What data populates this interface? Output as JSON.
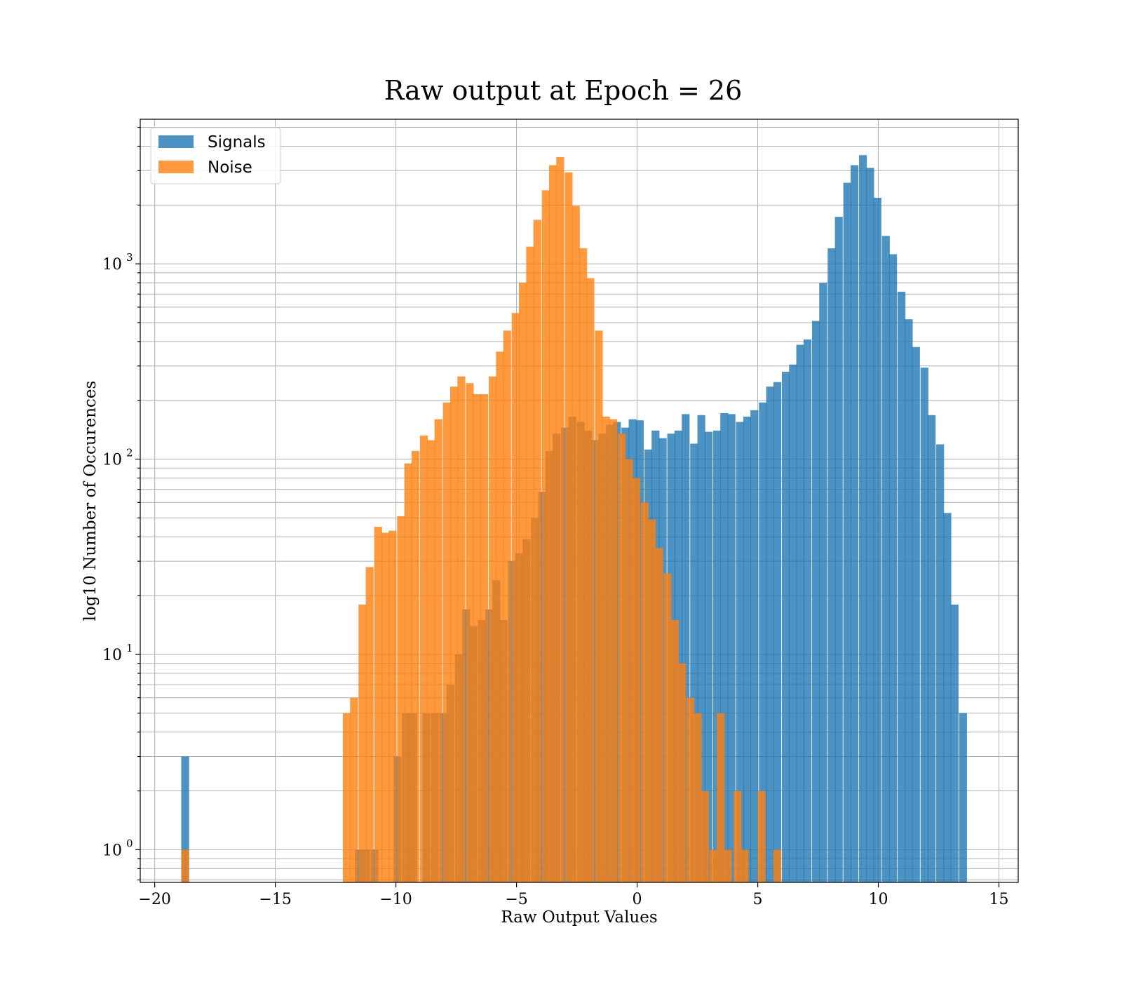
{
  "chart_data": {
    "type": "bar",
    "title": "Raw output at Epoch = 26",
    "xlabel": "Raw Output Values",
    "ylabel": "log10 Number of Occurences",
    "xlim": [
      -20.6,
      15.8
    ],
    "ylim": [
      0.68,
      5500
    ],
    "yscale": "log",
    "grid": true,
    "legend_position": "top-left",
    "x_ticks": [
      -20,
      -15,
      -10,
      -5,
      0,
      5,
      10,
      15
    ],
    "x_tick_labels": [
      "−20",
      "−15",
      "−10",
      "−5",
      "0",
      "5",
      "10",
      "15"
    ],
    "y_ticks": [
      1,
      10,
      100,
      1000
    ],
    "y_tick_labels": [
      {
        "base": "10",
        "exp": "0"
      },
      {
        "base": "10",
        "exp": "1"
      },
      {
        "base": "10",
        "exp": "2"
      },
      {
        "base": "10",
        "exp": "3"
      }
    ],
    "bin_width": 0.325,
    "colors": {
      "Signals": "#1f77b4",
      "Noise": "#ff7f0e"
    },
    "series": [
      {
        "name": "Signals",
        "bins": [
          [
            -18.9,
            3
          ],
          [
            -11.7,
            1
          ],
          [
            -11.4,
            1
          ],
          [
            -11.05,
            1
          ],
          [
            -10.1,
            3
          ],
          [
            -9.75,
            5
          ],
          [
            -9.45,
            5
          ],
          [
            -8.9,
            5
          ],
          [
            -8.55,
            5
          ],
          [
            -8.2,
            5
          ],
          [
            -7.9,
            7
          ],
          [
            -7.55,
            10
          ],
          [
            -7.25,
            17
          ],
          [
            -6.95,
            14
          ],
          [
            -6.6,
            15
          ],
          [
            -6.3,
            17
          ],
          [
            -6.0,
            24
          ],
          [
            -5.7,
            15
          ],
          [
            -5.35,
            30
          ],
          [
            -5.05,
            33
          ],
          [
            -4.75,
            39
          ],
          [
            -4.4,
            50
          ],
          [
            -4.1,
            68
          ],
          [
            -3.8,
            110
          ],
          [
            -3.5,
            135
          ],
          [
            -3.15,
            145
          ],
          [
            -2.85,
            165
          ],
          [
            -2.5,
            155
          ],
          [
            -2.2,
            140
          ],
          [
            -1.9,
            125
          ],
          [
            -1.6,
            135
          ],
          [
            -1.3,
            150
          ],
          [
            -1.0,
            155
          ],
          [
            -0.65,
            145
          ],
          [
            -0.35,
            160
          ],
          [
            -0.05,
            158
          ],
          [
            0.3,
            112
          ],
          [
            0.6,
            140
          ],
          [
            0.9,
            128
          ],
          [
            1.25,
            135
          ],
          [
            1.55,
            140
          ],
          [
            1.85,
            170
          ],
          [
            2.2,
            120
          ],
          [
            2.5,
            168
          ],
          [
            2.8,
            138
          ],
          [
            3.15,
            140
          ],
          [
            3.45,
            172
          ],
          [
            3.75,
            170
          ],
          [
            4.1,
            155
          ],
          [
            4.4,
            165
          ],
          [
            4.7,
            178
          ],
          [
            5.05,
            195
          ],
          [
            5.35,
            235
          ],
          [
            5.65,
            248
          ],
          [
            6.0,
            280
          ],
          [
            6.3,
            305
          ],
          [
            6.6,
            385
          ],
          [
            6.9,
            410
          ],
          [
            7.25,
            510
          ],
          [
            7.55,
            800
          ],
          [
            7.9,
            1200
          ],
          [
            8.2,
            1740
          ],
          [
            8.55,
            2600
          ],
          [
            8.85,
            3200
          ],
          [
            9.2,
            3600
          ],
          [
            9.5,
            3100
          ],
          [
            9.8,
            2180
          ],
          [
            10.15,
            1390
          ],
          [
            10.45,
            1120
          ],
          [
            10.8,
            720
          ],
          [
            11.1,
            520
          ],
          [
            11.4,
            375
          ],
          [
            11.75,
            294
          ],
          [
            12.05,
            168
          ],
          [
            12.4,
            119
          ],
          [
            12.7,
            53
          ],
          [
            13.0,
            18
          ],
          [
            13.35,
            5
          ]
        ]
      },
      {
        "name": "Noise",
        "bins": [
          [
            -18.9,
            1
          ],
          [
            -12.2,
            5
          ],
          [
            -11.9,
            6
          ],
          [
            -11.55,
            18
          ],
          [
            -11.25,
            28
          ],
          [
            -10.9,
            45
          ],
          [
            -10.6,
            42
          ],
          [
            -10.3,
            43
          ],
          [
            -9.95,
            51
          ],
          [
            -9.65,
            95
          ],
          [
            -9.35,
            110
          ],
          [
            -9.0,
            132
          ],
          [
            -8.7,
            125
          ],
          [
            -8.4,
            160
          ],
          [
            -8.05,
            195
          ],
          [
            -7.75,
            235
          ],
          [
            -7.45,
            265
          ],
          [
            -7.1,
            245
          ],
          [
            -6.8,
            215
          ],
          [
            -6.5,
            215
          ],
          [
            -6.15,
            265
          ],
          [
            -5.85,
            355
          ],
          [
            -5.55,
            455
          ],
          [
            -5.2,
            560
          ],
          [
            -4.9,
            800
          ],
          [
            -4.6,
            1225
          ],
          [
            -4.3,
            1680
          ],
          [
            -3.95,
            2380
          ],
          [
            -3.65,
            3200
          ],
          [
            -3.35,
            3520
          ],
          [
            -3.0,
            2940
          ],
          [
            -2.7,
            1980
          ],
          [
            -2.4,
            1200
          ],
          [
            -2.1,
            845
          ],
          [
            -1.75,
            455
          ],
          [
            -1.45,
            165
          ],
          [
            -1.15,
            160
          ],
          [
            -0.8,
            135
          ],
          [
            -0.5,
            100
          ],
          [
            -0.2,
            80
          ],
          [
            0.15,
            60
          ],
          [
            0.45,
            49
          ],
          [
            0.75,
            35
          ],
          [
            1.1,
            26
          ],
          [
            1.4,
            15
          ],
          [
            1.7,
            9
          ],
          [
            2.05,
            6
          ],
          [
            2.35,
            5
          ],
          [
            2.65,
            2
          ],
          [
            3.0,
            1
          ],
          [
            3.3,
            5
          ],
          [
            3.6,
            1
          ],
          [
            4.0,
            2
          ],
          [
            4.3,
            1
          ],
          [
            5.0,
            2
          ],
          [
            5.65,
            1
          ]
        ]
      }
    ]
  }
}
